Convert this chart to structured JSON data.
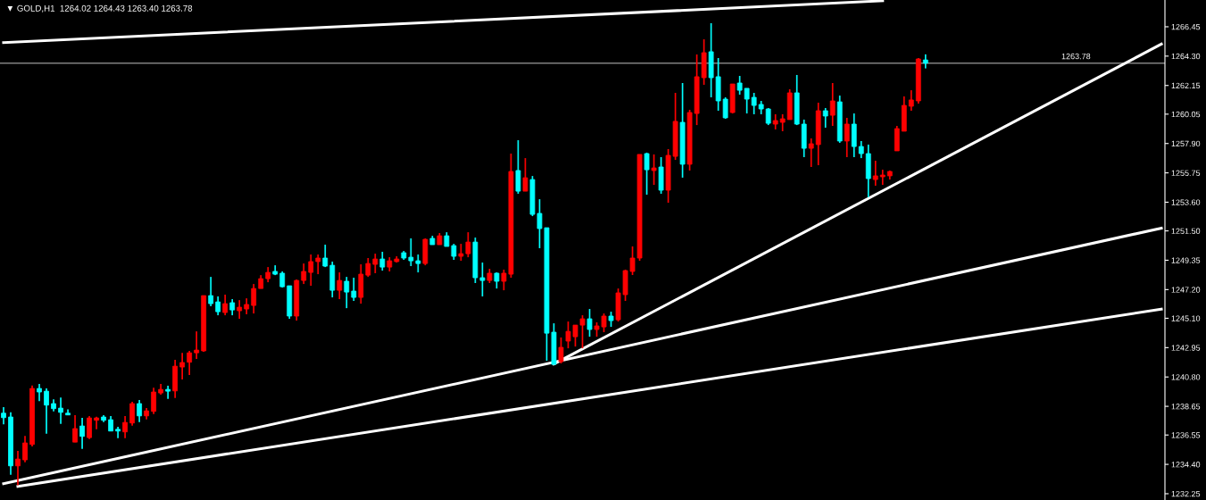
{
  "chart_data": {
    "type": "candlestick",
    "title": "▼ GOLD,H1  1264.02 1264.43 1263.40 1263.78",
    "categories": [
      null,
      null,
      null,
      null,
      null,
      null,
      null,
      null,
      null,
      null,
      null,
      null,
      null,
      null,
      null,
      null,
      null,
      null,
      null,
      null,
      null,
      null,
      null,
      null,
      null,
      null,
      null,
      null,
      null,
      null,
      null,
      null,
      null,
      null,
      null,
      null,
      null,
      null,
      null,
      null,
      null,
      null,
      null,
      null,
      null,
      null,
      null,
      null,
      null,
      null,
      null,
      null,
      null,
      null,
      null,
      null,
      null,
      null,
      null,
      null,
      null,
      null,
      null,
      null,
      null,
      null,
      null,
      null,
      null,
      null,
      null,
      null,
      null,
      null,
      null,
      null,
      null,
      null,
      null,
      null,
      null,
      null,
      null,
      null,
      null,
      null,
      null,
      null,
      null,
      null,
      null,
      null,
      null,
      null,
      null,
      null,
      null,
      null,
      null,
      null,
      null,
      null,
      null,
      null,
      null,
      null,
      null,
      null,
      null,
      null,
      null,
      null,
      null,
      null,
      null,
      null,
      null,
      null,
      null,
      null,
      null,
      null,
      null,
      null,
      null,
      null,
      null,
      null,
      null,
      null,
      null,
      null,
      null,
      null,
      null,
      null,
      null,
      null,
      null,
      null,
      null,
      null,
      null,
      null,
      null,
      null,
      null,
      null,
      null,
      null,
      null,
      null,
      null,
      null,
      null,
      null,
      null,
      null,
      null,
      null,
      null,
      null,
      null
    ],
    "ohlc": [
      [
        1238.15,
        1238.59,
        1237.34,
        1237.82
      ],
      [
        1237.87,
        1238.21,
        1233.64,
        1234.29
      ],
      [
        1234.29,
        1235.38,
        1232.87,
        1234.79
      ],
      [
        1234.73,
        1236.49,
        1234.55,
        1235.97
      ],
      [
        1235.86,
        1240.18,
        1235.71,
        1239.96
      ],
      [
        1239.96,
        1240.29,
        1239.04,
        1239.7
      ],
      [
        1239.76,
        1239.96,
        1236.65,
        1238.74
      ],
      [
        1238.85,
        1239.17,
        1238.28,
        1238.48
      ],
      [
        1238.52,
        1239.3,
        1237.36,
        1238.21
      ],
      [
        1238.15,
        1238.43,
        1238.02,
        1238.02
      ],
      [
        1236.03,
        1238.0,
        1236.03,
        1237.02
      ],
      [
        1237.21,
        1237.8,
        1235.53,
        1236.45
      ],
      [
        1236.36,
        1237.93,
        1236.25,
        1237.8
      ],
      [
        1237.63,
        1237.89,
        1236.97,
        1237.8
      ],
      [
        1237.87,
        1238.0,
        1237.5,
        1237.63
      ],
      [
        1237.67,
        1237.93,
        1236.84,
        1236.84
      ],
      [
        1236.97,
        1237.15,
        1236.32,
        1236.84
      ],
      [
        1236.78,
        1237.93,
        1236.32,
        1237.47
      ],
      [
        1237.43,
        1238.98,
        1237.23,
        1238.85
      ],
      [
        1238.85,
        1239.11,
        1237.5,
        1237.95
      ],
      [
        1237.95,
        1238.52,
        1237.69,
        1238.32
      ],
      [
        1238.28,
        1240.02,
        1238.08,
        1239.7
      ],
      [
        1239.63,
        1240.29,
        1239.5,
        1239.89
      ],
      [
        1239.89,
        1240.16,
        1239.2,
        1239.76
      ],
      [
        1239.78,
        1242.05,
        1239.26,
        1241.59
      ],
      [
        1241.53,
        1242.57,
        1240.61,
        1241.86
      ],
      [
        1241.88,
        1242.71,
        1240.94,
        1242.57
      ],
      [
        1242.57,
        1244.14,
        1242.12,
        1242.77
      ],
      [
        1242.71,
        1246.76,
        1242.64,
        1246.76
      ],
      [
        1246.76,
        1248.13,
        1245.98,
        1246.17
      ],
      [
        1246.3,
        1246.7,
        1245.32,
        1245.58
      ],
      [
        1245.52,
        1246.83,
        1245.32,
        1246.17
      ],
      [
        1246.24,
        1246.5,
        1245.32,
        1245.71
      ],
      [
        1245.65,
        1246.43,
        1245.06,
        1245.91
      ],
      [
        1245.78,
        1246.56,
        1245.39,
        1246.11
      ],
      [
        1246.04,
        1247.61,
        1245.45,
        1247.28
      ],
      [
        1247.28,
        1248.26,
        1247.28,
        1248.0
      ],
      [
        1248.0,
        1248.85,
        1247.74,
        1248.46
      ],
      [
        1248.53,
        1248.98,
        1248.26,
        1248.33
      ],
      [
        1248.4,
        1248.53,
        1247.35,
        1247.41
      ],
      [
        1247.48,
        1247.48,
        1245.06,
        1245.26
      ],
      [
        1245.26,
        1247.94,
        1244.93,
        1247.87
      ],
      [
        1247.87,
        1249.11,
        1247.61,
        1248.53
      ],
      [
        1248.46,
        1249.77,
        1247.48,
        1249.25
      ],
      [
        1249.25,
        1249.77,
        1248.33,
        1249.51
      ],
      [
        1249.51,
        1250.49,
        1248.85,
        1248.92
      ],
      [
        1248.98,
        1249.25,
        1246.63,
        1247.15
      ],
      [
        1247.15,
        1248.46,
        1246.5,
        1247.87
      ],
      [
        1247.81,
        1248.13,
        1245.84,
        1247.02
      ],
      [
        1247.09,
        1248.07,
        1246.37,
        1246.63
      ],
      [
        1246.63,
        1249.05,
        1246.17,
        1248.33
      ],
      [
        1248.26,
        1249.51,
        1248.13,
        1249.11
      ],
      [
        1249.05,
        1249.83,
        1248.4,
        1249.44
      ],
      [
        1249.44,
        1249.97,
        1248.59,
        1248.85
      ],
      [
        1248.85,
        1249.57,
        1248.53,
        1249.31
      ],
      [
        1249.25,
        1249.64,
        1249.18,
        1249.44
      ],
      [
        1249.9,
        1250.03,
        1249.38,
        1249.51
      ],
      [
        1249.57,
        1250.95,
        1248.92,
        1249.31
      ],
      [
        1249.31,
        1249.77,
        1248.46,
        1249.11
      ],
      [
        1249.11,
        1250.95,
        1248.98,
        1250.88
      ],
      [
        1250.95,
        1251.14,
        1250.49,
        1250.49
      ],
      [
        1250.49,
        1251.34,
        1250.49,
        1251.14
      ],
      [
        1251.14,
        1251.4,
        1250.36,
        1250.36
      ],
      [
        1250.42,
        1250.55,
        1249.38,
        1249.64
      ],
      [
        1249.64,
        1250.55,
        1249.31,
        1249.83
      ],
      [
        1249.83,
        1251.4,
        1249.57,
        1250.68
      ],
      [
        1250.68,
        1251.01,
        1247.68,
        1248.07
      ],
      [
        1248.07,
        1249.18,
        1246.7,
        1247.87
      ],
      [
        1247.87,
        1248.72,
        1247.68,
        1248.4
      ],
      [
        1248.4,
        1248.46,
        1247.28,
        1247.81
      ],
      [
        1247.81,
        1248.66,
        1247.15,
        1248.4
      ],
      [
        1248.33,
        1257.16,
        1248.07,
        1255.85
      ],
      [
        1255.92,
        1258.14,
        1254.22,
        1254.41
      ],
      [
        1254.41,
        1256.83,
        1254.41,
        1255.39
      ],
      [
        1255.26,
        1255.52,
        1252.58,
        1252.71
      ],
      [
        1252.78,
        1253.82,
        1250.23,
        1251.67
      ],
      [
        1251.73,
        1251.73,
        1241.99,
        1244.01
      ],
      [
        1244.08,
        1244.73,
        1241.72,
        1241.72
      ],
      [
        1241.92,
        1243.69,
        1241.79,
        1242.97
      ],
      [
        1243.43,
        1244.86,
        1242.9,
        1244.14
      ],
      [
        1243.75,
        1244.6,
        1243.03,
        1244.6
      ],
      [
        1244.6,
        1245.32,
        1242.9,
        1245.06
      ],
      [
        1245.06,
        1245.78,
        1243.75,
        1244.28
      ],
      [
        1244.28,
        1244.8,
        1243.75,
        1244.54
      ],
      [
        1244.47,
        1245.45,
        1244.08,
        1245.26
      ],
      [
        1245.26,
        1245.58,
        1244.47,
        1244.93
      ],
      [
        1244.99,
        1247.28,
        1244.86,
        1246.96
      ],
      [
        1246.83,
        1248.66,
        1246.37,
        1248.59
      ],
      [
        1248.53,
        1250.36,
        1248.27,
        1249.51
      ],
      [
        1249.51,
        1257.1,
        1249.31,
        1257.1
      ],
      [
        1257.16,
        1257.23,
        1254.15,
        1255.98
      ],
      [
        1255.92,
        1257.1,
        1254.87,
        1256.11
      ],
      [
        1256.18,
        1256.9,
        1254.22,
        1254.48
      ],
      [
        1254.48,
        1257.49,
        1253.56,
        1257.03
      ],
      [
        1256.96,
        1261.61,
        1256.7,
        1259.52
      ],
      [
        1259.45,
        1262.33,
        1255.4,
        1256.38
      ],
      [
        1256.38,
        1260.37,
        1255.92,
        1260.17
      ],
      [
        1260.1,
        1264.42,
        1259.25,
        1262.79
      ],
      [
        1262.72,
        1265.53,
        1262.2,
        1264.55
      ],
      [
        1264.62,
        1266.71,
        1261.28,
        1262.72
      ],
      [
        1262.79,
        1264.16,
        1260.3,
        1261.02
      ],
      [
        1261.15,
        1261.28,
        1259.71,
        1259.78
      ],
      [
        1260.17,
        1262.26,
        1260.1,
        1262.26
      ],
      [
        1262.33,
        1262.85,
        1261.48,
        1261.8
      ],
      [
        1261.94,
        1261.94,
        1260.1,
        1261.15
      ],
      [
        1261.28,
        1261.61,
        1260.04,
        1260.69
      ],
      [
        1260.76,
        1261.02,
        1260.04,
        1260.43
      ],
      [
        1260.43,
        1260.5,
        1259.25,
        1259.38
      ],
      [
        1259.32,
        1260.04,
        1258.93,
        1259.58
      ],
      [
        1259.45,
        1260.04,
        1258.8,
        1259.71
      ],
      [
        1259.65,
        1261.87,
        1259.65,
        1261.61
      ],
      [
        1261.61,
        1262.92,
        1259.25,
        1259.32
      ],
      [
        1259.32,
        1259.65,
        1256.9,
        1257.55
      ],
      [
        1257.55,
        1258.27,
        1256.18,
        1257.88
      ],
      [
        1257.82,
        1260.89,
        1256.31,
        1260.3
      ],
      [
        1260.3,
        1260.5,
        1259.06,
        1259.91
      ],
      [
        1259.97,
        1262.33,
        1259.19,
        1261.02
      ],
      [
        1260.95,
        1261.41,
        1257.95,
        1258.08
      ],
      [
        1258.08,
        1259.78,
        1256.9,
        1259.32
      ],
      [
        1259.32,
        1260.1,
        1256.9,
        1257.68
      ],
      [
        1257.68,
        1258.08,
        1256.83,
        1257.16
      ],
      [
        1257.16,
        1257.82,
        1253.96,
        1255.33
      ],
      [
        1255.26,
        1256.64,
        1254.81,
        1255.53
      ],
      [
        1255.46,
        1255.98,
        1254.87,
        1255.59
      ],
      [
        1255.53,
        1255.92,
        1255.26,
        1255.85
      ],
      [
        1257.36,
        1259.19,
        1257.36,
        1258.99
      ],
      [
        1258.8,
        1261.35,
        1258.8,
        1260.69
      ],
      [
        1260.63,
        1261.8,
        1260.3,
        1261.09
      ],
      [
        1261.02,
        1264.16,
        1260.82,
        1264.09
      ],
      [
        1264.02,
        1264.43,
        1263.4,
        1263.78
      ],
      null,
      null,
      null,
      null,
      null,
      null,
      null,
      null,
      null,
      null,
      null,
      null,
      null,
      null,
      null,
      null,
      null,
      null,
      null,
      null,
      null,
      null,
      null,
      null,
      null,
      null,
      null,
      null,
      null,
      null,
      null,
      null,
      null
    ],
    "colors": [
      "#00ffff",
      "#00ffff",
      "#ff0000",
      "#ff0000",
      "#ff0000",
      "#00ffff",
      "#00ffff",
      "#00ffff",
      "#00ffff",
      "#00ffff",
      "#ff0000",
      "#00ffff",
      "#ff0000",
      "#ff0000",
      "#00ffff",
      "#00ffff",
      "#00ffff",
      "#ff0000",
      "#ff0000",
      "#00ffff",
      "#ff0000",
      "#ff0000",
      "#ff0000",
      "#00ffff",
      "#ff0000",
      "#ff0000",
      "#ff0000",
      "#ff0000",
      "#ff0000",
      "#00ffff",
      "#00ffff",
      "#ff0000",
      "#00ffff",
      "#ff0000",
      "#ff0000",
      "#ff0000",
      "#ff0000",
      "#ff0000",
      "#00ffff",
      "#00ffff",
      "#00ffff",
      "#ff0000",
      "#ff0000",
      "#ff0000",
      "#ff0000",
      "#00ffff",
      "#00ffff",
      "#ff0000",
      "#00ffff",
      "#00ffff",
      "#ff0000",
      "#ff0000",
      "#ff0000",
      "#00ffff",
      "#ff0000",
      "#ff0000",
      "#00ffff",
      "#00ffff",
      "#00ffff",
      "#ff0000",
      "#00ffff",
      "#ff0000",
      "#00ffff",
      "#00ffff",
      "#ff0000",
      "#ff0000",
      "#00ffff",
      "#00ffff",
      "#ff0000",
      "#00ffff",
      "#ff0000",
      "#ff0000",
      "#00ffff",
      "#ff0000",
      "#00ffff",
      "#00ffff",
      "#00ffff",
      "#00ffff",
      "#ff0000",
      "#ff0000",
      "#ff0000",
      "#ff0000",
      "#00ffff",
      "#ff0000",
      "#ff0000",
      "#00ffff",
      "#ff0000",
      "#ff0000",
      "#ff0000",
      "#ff0000",
      "#00ffff",
      "#ff0000",
      "#00ffff",
      "#ff0000",
      "#ff0000",
      "#00ffff",
      "#ff0000",
      "#ff0000",
      "#ff0000",
      "#00ffff",
      "#00ffff",
      "#00ffff",
      "#ff0000",
      "#00ffff",
      "#00ffff",
      "#00ffff",
      "#00ffff",
      "#00ffff",
      "#ff0000",
      "#ff0000",
      "#ff0000",
      "#00ffff",
      "#00ffff",
      "#ff0000",
      "#ff0000",
      "#00ffff",
      "#ff0000",
      "#00ffff",
      "#ff0000",
      "#00ffff",
      "#00ffff",
      "#00ffff",
      "#ff0000",
      "#ff0000",
      "#ff0000",
      "#ff0000",
      "#ff0000",
      "#ff0000",
      "#ff0000",
      "#00ffff",
      null,
      null,
      null,
      null,
      null,
      null,
      null,
      null,
      null,
      null,
      null,
      null,
      null,
      null,
      null,
      null,
      null,
      null,
      null,
      null,
      null,
      null,
      null,
      null,
      null,
      null,
      null,
      null,
      null,
      null,
      null,
      null,
      null
    ],
    "series": [
      {
        "type": "line",
        "color": "#ffffff",
        "values": [
          1265.29,
          null,
          null,
          null,
          null,
          null,
          null,
          null,
          null,
          null,
          null,
          null,
          null,
          null,
          null,
          null,
          null,
          null,
          null,
          null,
          null,
          null,
          null,
          null,
          null,
          null,
          null,
          null,
          null,
          null,
          null,
          null,
          null,
          null,
          null,
          null,
          null,
          null,
          null,
          null,
          null,
          null,
          null,
          null,
          null,
          null,
          null,
          null,
          null,
          null,
          null,
          null,
          null,
          null,
          null,
          null,
          null,
          null,
          null,
          null,
          null,
          null,
          null,
          null,
          null,
          null,
          null,
          null,
          null,
          null,
          null,
          null,
          null,
          null,
          null,
          null,
          null,
          null,
          null,
          null,
          null,
          null,
          null,
          null,
          null,
          null,
          null,
          null,
          null,
          null,
          null,
          null,
          null,
          null,
          null,
          null,
          null,
          null,
          null,
          null,
          null,
          null,
          null,
          null,
          null,
          null,
          null,
          null,
          null,
          null,
          null,
          null,
          null,
          null,
          null,
          null,
          null,
          null,
          null,
          null,
          null,
          null,
          null,
          1268.35,
          null,
          null,
          null,
          null,
          null,
          null,
          null,
          null,
          null,
          null,
          null,
          null,
          null,
          null,
          null,
          null,
          null,
          null,
          null,
          null,
          null,
          null,
          null,
          null,
          null,
          null,
          null,
          null,
          null,
          null,
          null,
          null,
          null,
          null,
          null,
          null,
          null,
          null,
          null
        ]
      },
      {
        "type": "line",
        "color": "#ffffff",
        "values": [
          null,
          null,
          null,
          null,
          null,
          null,
          null,
          null,
          null,
          null,
          null,
          null,
          null,
          null,
          null,
          null,
          null,
          null,
          null,
          null,
          null,
          null,
          null,
          null,
          null,
          null,
          null,
          null,
          null,
          null,
          null,
          null,
          null,
          null,
          null,
          null,
          null,
          null,
          null,
          null,
          null,
          null,
          null,
          null,
          null,
          null,
          null,
          null,
          null,
          null,
          null,
          null,
          null,
          null,
          null,
          null,
          null,
          null,
          null,
          null,
          null,
          null,
          null,
          null,
          null,
          null,
          null,
          null,
          null,
          null,
          null,
          null,
          null,
          null,
          null,
          null,
          null,
          1241.75,
          null,
          null,
          null,
          null,
          null,
          null,
          null,
          null,
          null,
          null,
          null,
          null,
          null,
          null,
          null,
          null,
          null,
          null,
          null,
          null,
          null,
          null,
          null,
          null,
          null,
          null,
          null,
          null,
          null,
          null,
          null,
          null,
          null,
          null,
          null,
          null,
          null,
          null,
          null,
          null,
          null,
          null,
          null,
          null,
          null,
          null,
          null,
          null,
          null,
          null,
          null,
          null,
          null,
          null,
          null,
          null,
          null,
          null,
          null,
          null,
          null,
          null,
          null,
          null,
          null,
          null,
          null,
          null,
          null,
          null,
          null,
          null,
          null,
          null,
          null,
          null,
          null,
          null,
          null,
          null,
          null,
          null,
          null,
          null,
          1265.18
        ]
      },
      {
        "type": "line",
        "color": "#ffffff",
        "values": [
          1232.99,
          null,
          null,
          null,
          null,
          null,
          null,
          null,
          null,
          null,
          null,
          null,
          null,
          null,
          null,
          null,
          null,
          null,
          null,
          null,
          null,
          null,
          null,
          null,
          null,
          null,
          null,
          null,
          null,
          null,
          null,
          null,
          null,
          null,
          null,
          null,
          null,
          null,
          null,
          null,
          null,
          null,
          null,
          null,
          null,
          null,
          null,
          null,
          null,
          null,
          null,
          null,
          null,
          null,
          null,
          null,
          null,
          null,
          null,
          null,
          null,
          null,
          null,
          null,
          null,
          null,
          null,
          null,
          null,
          null,
          null,
          null,
          null,
          null,
          null,
          null,
          null,
          null,
          null,
          null,
          null,
          null,
          null,
          null,
          null,
          null,
          null,
          null,
          null,
          null,
          null,
          null,
          null,
          null,
          null,
          null,
          null,
          null,
          null,
          null,
          null,
          null,
          null,
          null,
          null,
          null,
          null,
          null,
          null,
          null,
          null,
          null,
          null,
          null,
          null,
          null,
          null,
          null,
          null,
          null,
          null,
          null,
          null,
          null,
          null,
          null,
          null,
          null,
          null,
          null,
          null,
          null,
          null,
          null,
          null,
          null,
          null,
          null,
          null,
          null,
          null,
          null,
          null,
          null,
          null,
          null,
          null,
          null,
          null,
          null,
          null,
          null,
          null,
          null,
          null,
          null,
          null,
          null,
          null,
          null,
          null,
          null,
          1251.7
        ]
      },
      {
        "type": "line",
        "color": "#ffffff",
        "values": [
          null,
          null,
          1232.79,
          null,
          null,
          null,
          null,
          null,
          null,
          null,
          null,
          null,
          null,
          null,
          null,
          null,
          null,
          null,
          null,
          null,
          null,
          null,
          null,
          null,
          null,
          null,
          null,
          null,
          null,
          null,
          null,
          null,
          null,
          null,
          null,
          null,
          null,
          null,
          null,
          null,
          null,
          null,
          null,
          null,
          null,
          null,
          null,
          null,
          null,
          null,
          null,
          null,
          null,
          null,
          null,
          null,
          null,
          null,
          null,
          null,
          null,
          null,
          null,
          null,
          null,
          null,
          null,
          null,
          null,
          null,
          null,
          null,
          null,
          null,
          null,
          null,
          null,
          null,
          null,
          null,
          null,
          null,
          null,
          null,
          null,
          null,
          null,
          null,
          null,
          null,
          null,
          null,
          null,
          null,
          null,
          null,
          null,
          null,
          null,
          null,
          null,
          null,
          null,
          null,
          null,
          null,
          null,
          null,
          null,
          null,
          null,
          null,
          null,
          null,
          null,
          null,
          null,
          null,
          null,
          null,
          null,
          null,
          null,
          null,
          null,
          null,
          null,
          null,
          null,
          null,
          null,
          null,
          null,
          null,
          null,
          null,
          null,
          null,
          null,
          null,
          null,
          null,
          null,
          null,
          null,
          null,
          null,
          null,
          null,
          null,
          null,
          null,
          null,
          null,
          null,
          null,
          null,
          null,
          null,
          null,
          null,
          null,
          1245.77
        ]
      }
    ],
    "ref_lines": [
      {
        "axis": "y",
        "value": 1263.78,
        "label": "1263.78",
        "color": "#808080"
      }
    ],
    "ylim": [
      1231.79,
      1268.41
    ],
    "yticks": [
      1266.45,
      {
        "value": 1264.3,
        "label": "1264.30"
      },
      1262.15,
      1260.05,
      {
        "value": 1257.9,
        "label": "1257.90"
      },
      1255.75,
      {
        "value": 1253.6,
        "label": "1253.60"
      },
      {
        "value": 1251.5,
        "label": "1251.50"
      },
      1249.35,
      {
        "value": 1247.2,
        "label": "1247.20"
      },
      {
        "value": 1245.1,
        "label": "1245.10"
      },
      1242.95,
      {
        "value": 1240.8,
        "label": "1240.80"
      },
      1238.65,
      1236.55,
      {
        "value": 1234.4,
        "label": "1234.40"
      },
      1232.25
    ],
    "tick_labels": "y"
  }
}
